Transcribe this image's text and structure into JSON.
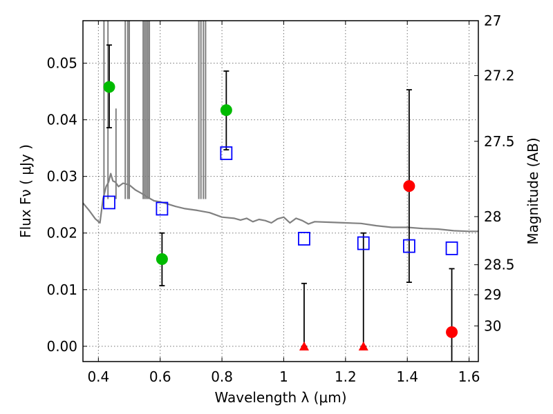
{
  "chart_data": {
    "type": "scatter",
    "xlabel": "Wavelength  λ (μm)",
    "ylabel": "Flux  Fν  ( μJy )",
    "y2label": "Magnitude (AB)",
    "xlim": [
      0.35,
      1.63
    ],
    "ylim": [
      -0.0027,
      0.0575
    ],
    "xticks": [
      0.4,
      0.6,
      0.8,
      1.0,
      1.2,
      1.4,
      1.6
    ],
    "xtick_labels": [
      "0.4",
      "0.6",
      "0.8",
      "1",
      "1.2",
      "1.4",
      "1.6"
    ],
    "yticks": [
      0.0,
      0.01,
      0.02,
      0.03,
      0.04,
      0.05
    ],
    "ytick_labels": [
      "0.00",
      "0.01",
      "0.02",
      "0.03",
      "0.04",
      "0.05"
    ],
    "y2ticks": [
      {
        "label": "27",
        "flux": 0.0575
      },
      {
        "label": "27.2",
        "flux": 0.0478
      },
      {
        "label": "27.5",
        "flux": 0.0362
      },
      {
        "label": "28",
        "flux": 0.0229
      },
      {
        "label": "28.5",
        "flux": 0.0144
      },
      {
        "label": "29",
        "flux": 0.0091
      },
      {
        "label": "30",
        "flux": 0.0036
      }
    ],
    "grid": true,
    "series": [
      {
        "marker": "circle",
        "color": "#00bb00",
        "points": [
          {
            "x": 0.435,
            "y": 0.0458,
            "lo": 0.0386,
            "hi": 0.0532
          },
          {
            "x": 0.606,
            "y": 0.0154,
            "lo": 0.0107,
            "hi": 0.02
          },
          {
            "x": 0.814,
            "y": 0.0417,
            "lo": 0.0347,
            "hi": 0.0486
          }
        ]
      },
      {
        "marker": "circle",
        "color": "#ff0000",
        "points": [
          {
            "x": 1.406,
            "y": 0.0283,
            "lo": 0.0113,
            "hi": 0.0453
          },
          {
            "x": 1.544,
            "y": 0.0025,
            "lo": -0.0027,
            "hi": 0.0137
          }
        ]
      },
      {
        "marker": "triangle",
        "color": "#ff0000",
        "points": [
          {
            "x": 1.066,
            "y": 0.0,
            "lo": 0.0,
            "hi": 0.0111
          },
          {
            "x": 1.258,
            "y": 0.0,
            "lo": 0.0,
            "hi": 0.02
          }
        ]
      },
      {
        "marker": "open-square",
        "color": "#0000ff",
        "points": [
          {
            "x": 0.435,
            "y": 0.0254
          },
          {
            "x": 0.606,
            "y": 0.0243
          },
          {
            "x": 0.814,
            "y": 0.0341
          },
          {
            "x": 1.066,
            "y": 0.019
          },
          {
            "x": 1.258,
            "y": 0.0182
          },
          {
            "x": 1.406,
            "y": 0.0177
          },
          {
            "x": 1.544,
            "y": 0.0173
          }
        ]
      },
      {
        "type": "line",
        "color": "#808080",
        "x": [
          0.35,
          0.37,
          0.39,
          0.405,
          0.415,
          0.425,
          0.433,
          0.44,
          0.447,
          0.455,
          0.465,
          0.48,
          0.5,
          0.52,
          0.54,
          0.56,
          0.58,
          0.6,
          0.62,
          0.65,
          0.68,
          0.72,
          0.76,
          0.8,
          0.84,
          0.86,
          0.88,
          0.9,
          0.92,
          0.94,
          0.96,
          0.98,
          1.0,
          1.02,
          1.04,
          1.06,
          1.08,
          1.1,
          1.15,
          1.2,
          1.25,
          1.3,
          1.35,
          1.4,
          1.45,
          1.5,
          1.55,
          1.6,
          1.63
        ],
        "y": [
          0.0253,
          0.024,
          0.0225,
          0.0218,
          0.026,
          0.0282,
          0.029,
          0.0305,
          0.0292,
          0.029,
          0.0282,
          0.0288,
          0.0285,
          0.0276,
          0.027,
          0.0263,
          0.0257,
          0.0255,
          0.0252,
          0.0247,
          0.0243,
          0.024,
          0.0236,
          0.0228,
          0.0226,
          0.0223,
          0.0226,
          0.022,
          0.0224,
          0.0222,
          0.0218,
          0.0225,
          0.0228,
          0.0218,
          0.0226,
          0.0222,
          0.0216,
          0.022,
          0.0219,
          0.0218,
          0.0217,
          0.0213,
          0.021,
          0.021,
          0.0208,
          0.0207,
          0.0204,
          0.0203,
          0.0203
        ]
      }
    ],
    "emission_lines": [
      {
        "x": 0.418,
        "y": 0.0575
      },
      {
        "x": 0.431,
        "y": 0.0575
      },
      {
        "x": 0.457,
        "y": 0.042
      },
      {
        "x": 0.487,
        "y": 0.0575
      },
      {
        "x": 0.495,
        "y": 0.0575
      },
      {
        "x": 0.5,
        "y": 0.0575
      },
      {
        "x": 0.545,
        "y": 0.0575
      },
      {
        "x": 0.55,
        "y": 0.0575
      },
      {
        "x": 0.555,
        "y": 0.0575
      },
      {
        "x": 0.56,
        "y": 0.0575
      },
      {
        "x": 0.565,
        "y": 0.0575
      },
      {
        "x": 0.725,
        "y": 0.0575
      },
      {
        "x": 0.732,
        "y": 0.0575
      },
      {
        "x": 0.74,
        "y": 0.0575
      },
      {
        "x": 0.747,
        "y": 0.0575
      }
    ]
  }
}
